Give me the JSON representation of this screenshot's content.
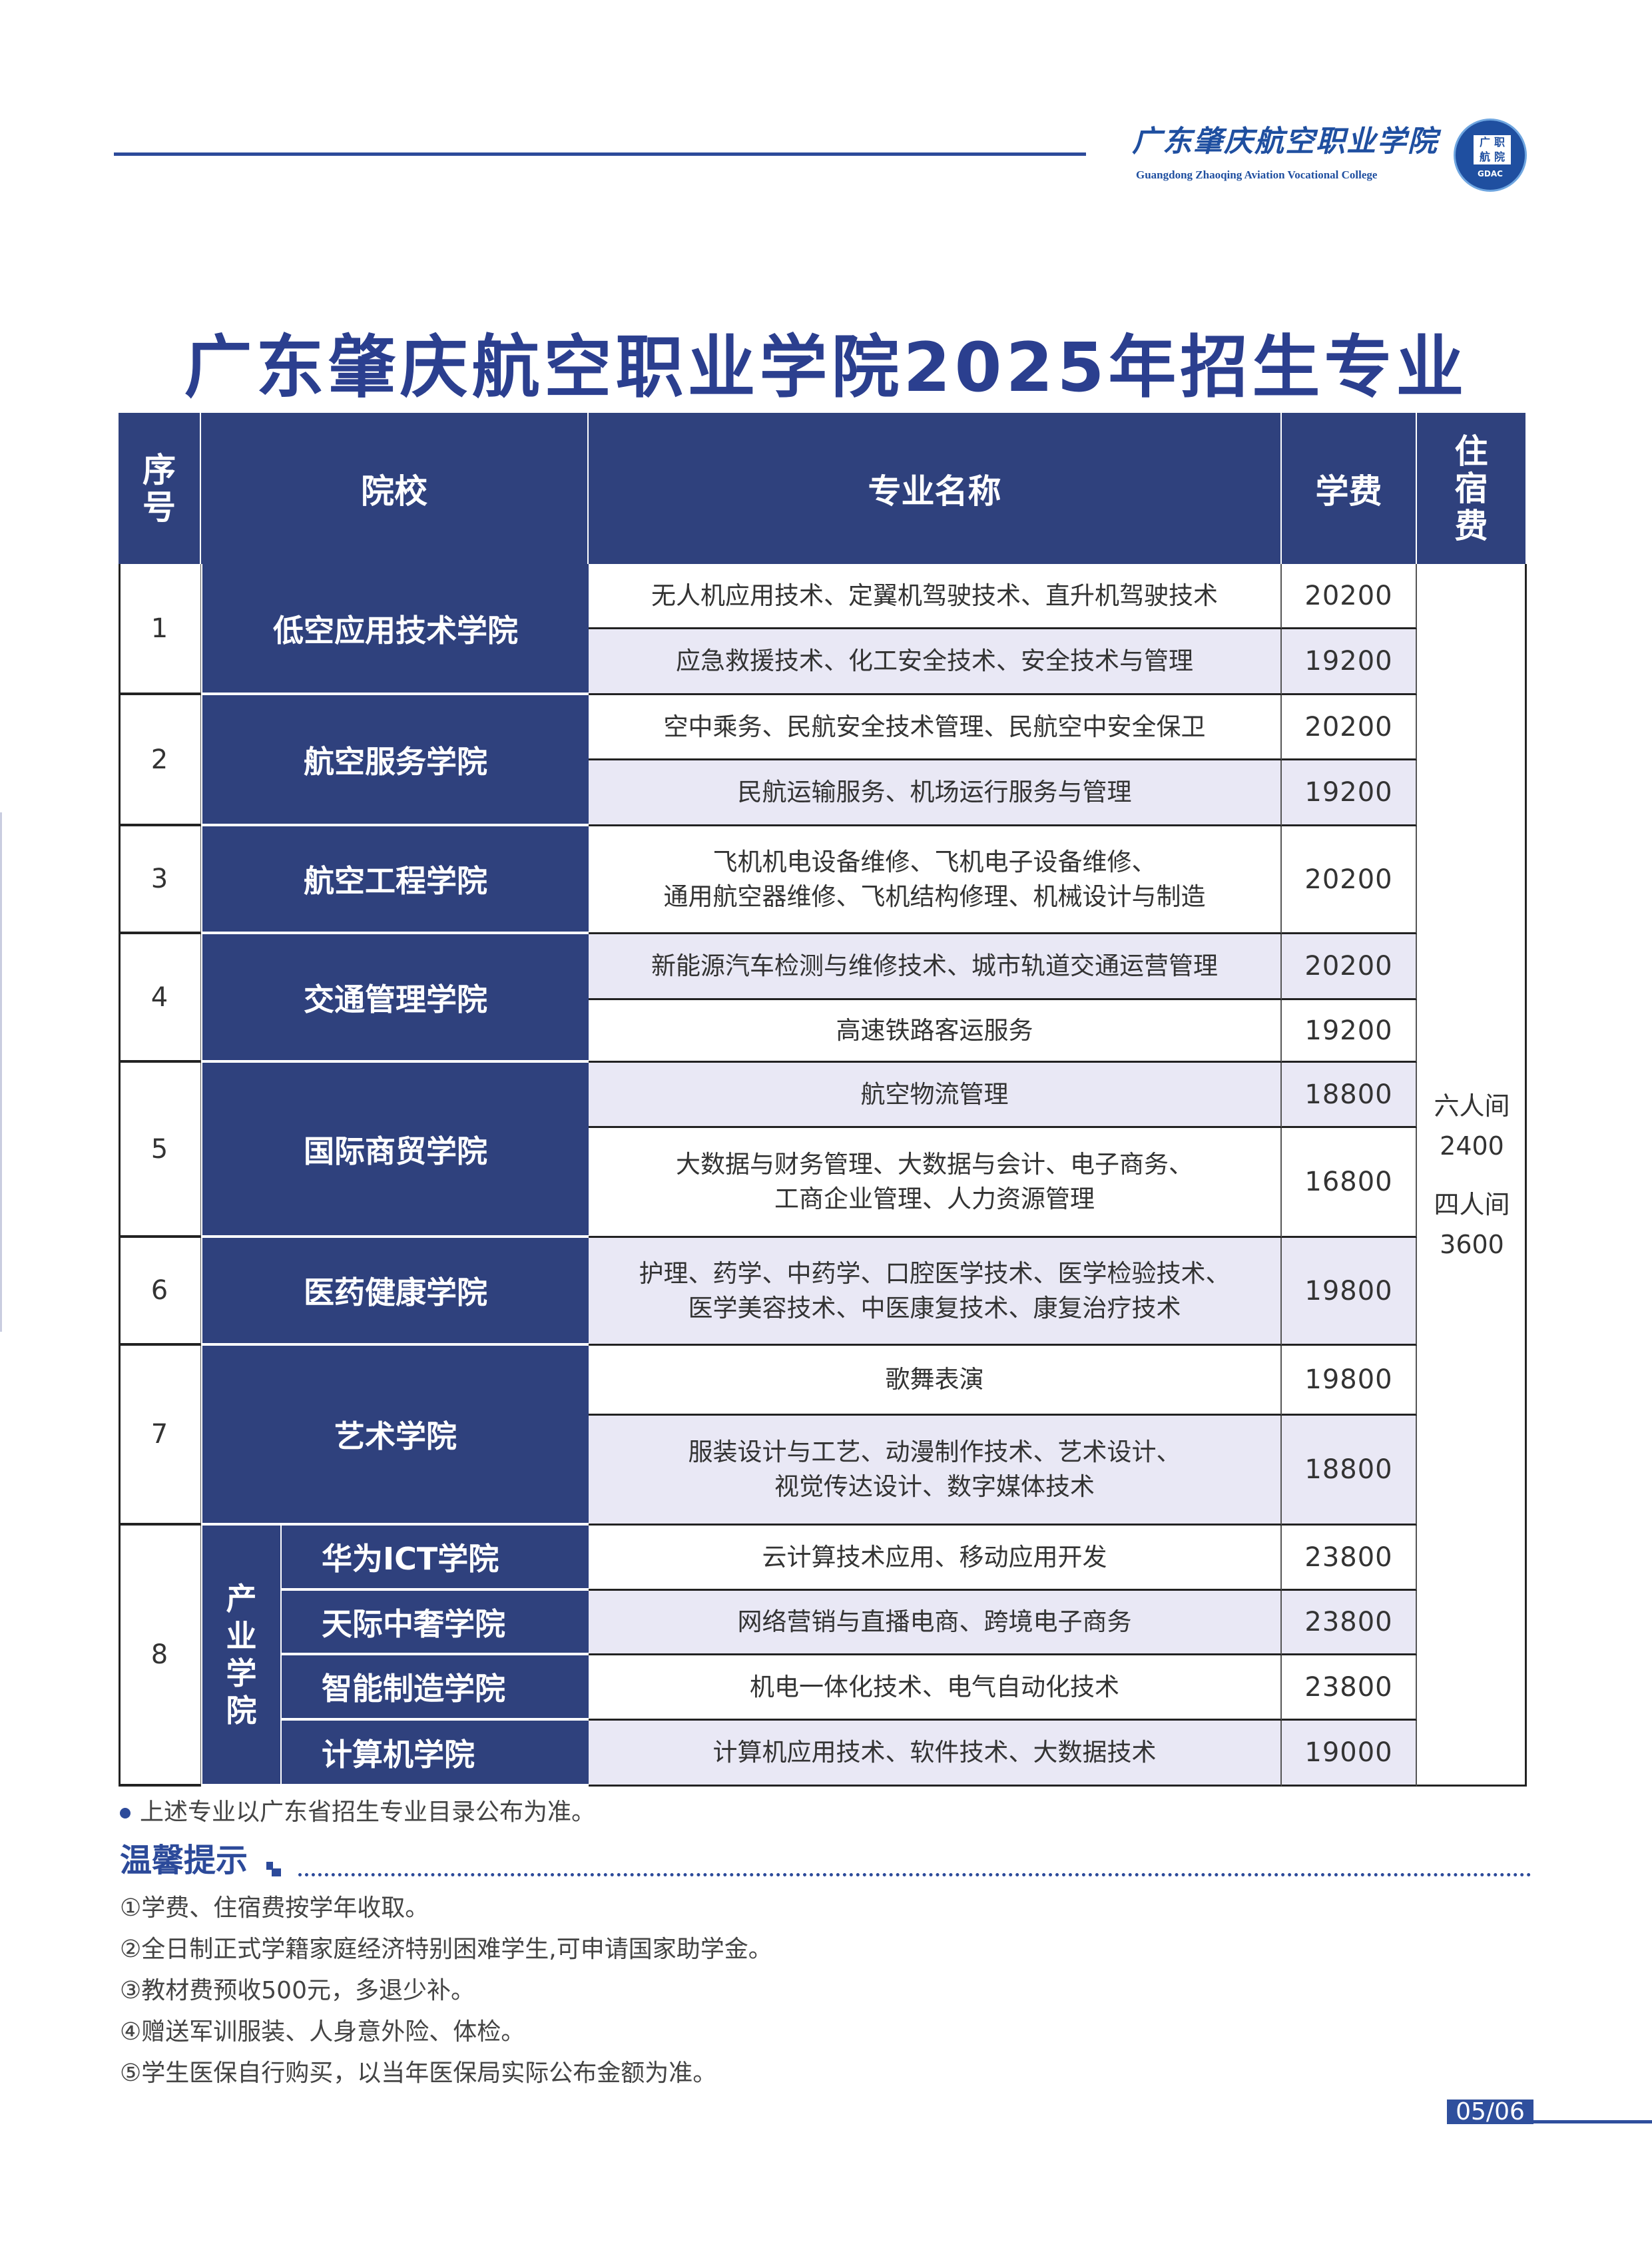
{
  "brand": {
    "name_cn": "广东肇庆航空职业学院",
    "name_en": "Guangdong Zhaoqing Aviation Vocational College",
    "badge_chars": [
      "广",
      "职",
      "航",
      "院"
    ],
    "badge_abbr": "GDAC",
    "color": "#2c4a9a"
  },
  "title": "广东肇庆航空职业学院2025年招生专业",
  "table": {
    "headers": {
      "no": "序\n号",
      "school": "院校",
      "major": "专业名称",
      "fee": "学费",
      "dorm": "住\n宿\n费"
    },
    "header_color": "#2f417d",
    "shade_color": "#e9e8f5",
    "rows": [
      {
        "no": "1",
        "school": "低空应用技术学院",
        "majors": [
          {
            "name": "无人机应用技术、定翼机驾驶技术、直升机驾驶技术",
            "fee": "20200",
            "shaded": false
          },
          {
            "name": "应急救援技术、化工安全技术、安全技术与管理",
            "fee": "19200",
            "shaded": true
          }
        ]
      },
      {
        "no": "2",
        "school": "航空服务学院",
        "majors": [
          {
            "name": "空中乘务、民航安全技术管理、民航空中安全保卫",
            "fee": "20200",
            "shaded": false
          },
          {
            "name": "民航运输服务、机场运行服务与管理",
            "fee": "19200",
            "shaded": true
          }
        ]
      },
      {
        "no": "3",
        "school": "航空工程学院",
        "majors": [
          {
            "name": "飞机机电设备维修、飞机电子设备维修、\n通用航空器维修、飞机结构修理、机械设计与制造",
            "fee": "20200",
            "shaded": false
          }
        ]
      },
      {
        "no": "4",
        "school": "交通管理学院",
        "majors": [
          {
            "name": "新能源汽车检测与维修技术、城市轨道交通运营管理",
            "fee": "20200",
            "shaded": true
          },
          {
            "name": "高速铁路客运服务",
            "fee": "19200",
            "shaded": false
          }
        ]
      },
      {
        "no": "5",
        "school": "国际商贸学院",
        "majors": [
          {
            "name": "航空物流管理",
            "fee": "18800",
            "shaded": true
          },
          {
            "name": "大数据与财务管理、大数据与会计、电子商务、\n工商企业管理、人力资源管理",
            "fee": "16800",
            "shaded": false
          }
        ]
      },
      {
        "no": "6",
        "school": "医药健康学院",
        "majors": [
          {
            "name": "护理、药学、中药学、口腔医学技术、医学检验技术、\n医学美容技术、中医康复技术、康复治疗技术",
            "fee": "19800",
            "shaded": true
          }
        ]
      },
      {
        "no": "7",
        "school": "艺术学院",
        "majors": [
          {
            "name": "歌舞表演",
            "fee": "19800",
            "shaded": false
          },
          {
            "name": "服装设计与工艺、动漫制作技术、艺术设计、\n视觉传达设计、数字媒体技术",
            "fee": "18800",
            "shaded": true
          }
        ]
      },
      {
        "no": "8",
        "school": "产\n业\n学\n院",
        "sub_schools": [
          {
            "school": "华为ICT学院",
            "name": "云计算技术应用、移动应用开发",
            "fee": "23800",
            "shaded": false
          },
          {
            "school": "天际中奢学院",
            "name": "网络营销与直播电商、跨境电子商务",
            "fee": "23800",
            "shaded": true
          },
          {
            "school": "智能制造学院",
            "name": "机电一体化技术、电气自动化技术",
            "fee": "23800",
            "shaded": false
          },
          {
            "school": "计算机学院",
            "name": "计算机应用技术、软件技术、大数据技术",
            "fee": "19000",
            "shaded": true
          }
        ]
      }
    ],
    "dorm": {
      "six_label": "六人间",
      "six_fee": "2400",
      "four_label": "四人间",
      "four_fee": "3600"
    }
  },
  "note": "上述专业以广东省招生专业目录公布为准。",
  "tips": {
    "title": "温馨提示",
    "items": [
      "①学费、住宿费按学年收取。",
      "②全日制正式学籍家庭经济特别困难学生,可申请国家助学金。",
      "③教材费预收500元，多退少补。",
      "④赠送军训服装、人身意外险、体检。",
      "⑤学生医保自行购买，以当年医保局实际公布金额为准。"
    ]
  },
  "page": "05/06"
}
